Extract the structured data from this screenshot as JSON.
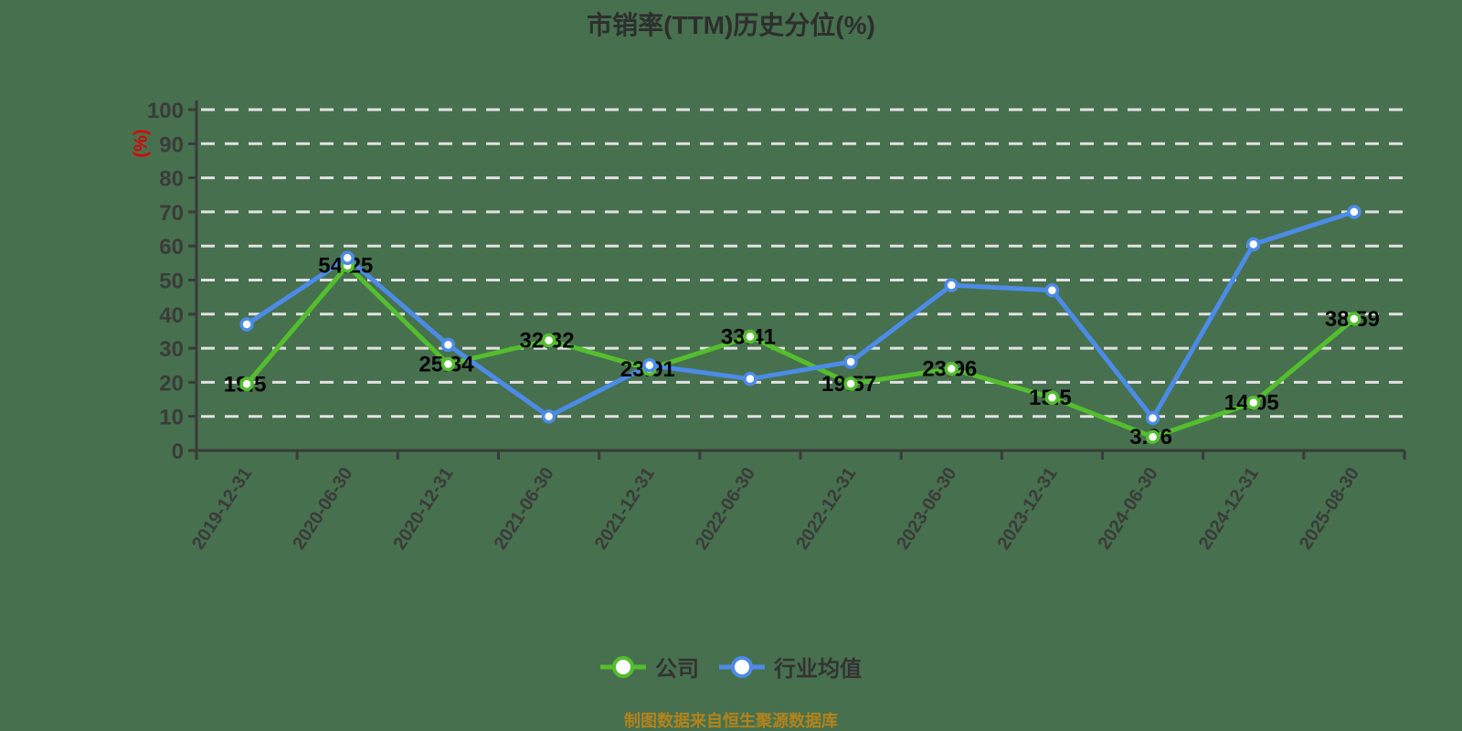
{
  "title": "市销率(TTM)历史分位(%)",
  "y_axis_unit": "(%)",
  "footer_note": "制图数据来自恒生聚源数据库",
  "colors": {
    "background": "#47704E",
    "title": "#2E2E2E",
    "axis": "#3A3A3A",
    "tick_label": "#3B3B3B",
    "gridline": "#E2E2E2",
    "data_label": "#060606",
    "unit_label": "#DE0000",
    "footer": "#B3831C",
    "company": "#54BE2E",
    "industry_average": "#4C8BE8",
    "marker_fill": "#FFFFFF"
  },
  "legend": {
    "items": [
      {
        "label": "公司",
        "color": "#54BE2E"
      },
      {
        "label": "行业均值",
        "color": "#4C8BE8"
      }
    ]
  },
  "chart_data": {
    "type": "line",
    "title": "市销率(TTM)历史分位(%)",
    "ylabel": "(%)",
    "xlabel": "",
    "ylim": [
      0,
      100
    ],
    "y_ticks": [
      0,
      10,
      20,
      30,
      40,
      50,
      60,
      70,
      80,
      90,
      100
    ],
    "grid": true,
    "gridline_style": "dashed",
    "legend_position": "bottom",
    "categories": [
      "2019-12-31",
      "2020-06-30",
      "2020-12-31",
      "2021-06-30",
      "2021-12-31",
      "2022-06-30",
      "2022-12-31",
      "2023-06-30",
      "2023-12-31",
      "2024-06-30",
      "2024-12-31",
      "2025-08-30"
    ],
    "series": [
      {
        "name": "公司",
        "color": "#54BE2E",
        "values": [
          19.5,
          54.25,
          25.34,
          32.32,
          23.91,
          33.41,
          19.57,
          23.96,
          15.5,
          3.96,
          14.05,
          38.59
        ],
        "show_value_labels": true
      },
      {
        "name": "行业均值",
        "color": "#4C8BE8",
        "values": [
          37,
          56.5,
          31,
          10,
          25,
          21,
          26,
          48.5,
          47,
          9.5,
          60.5,
          70
        ],
        "show_value_labels": false
      }
    ]
  }
}
